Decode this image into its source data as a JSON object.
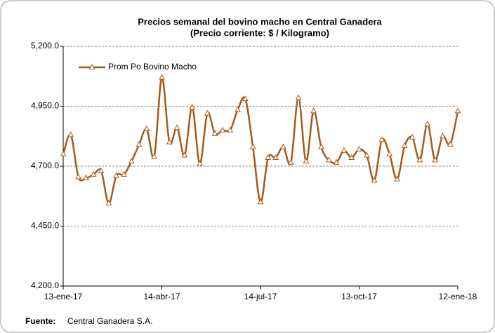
{
  "chart_data": {
    "type": "line",
    "title": "Precios semanal del bovino  macho en Central Ganadera",
    "subtitle": "(Precio corriente: $ / Kilogramo)",
    "categories": [
      "13-ene-17",
      null,
      null,
      null,
      null,
      null,
      null,
      null,
      null,
      null,
      null,
      null,
      null,
      "14-abr-17",
      null,
      null,
      null,
      null,
      null,
      null,
      null,
      null,
      null,
      null,
      null,
      null,
      "14-jul-17",
      null,
      null,
      null,
      null,
      null,
      null,
      null,
      null,
      null,
      null,
      null,
      null,
      "13-oct-17",
      null,
      null,
      null,
      null,
      null,
      null,
      null,
      null,
      null,
      null,
      null,
      null,
      "12-ene-18"
    ],
    "series": [
      {
        "name": "Prom Po Bovino Macho",
        "color": "#a65a1a",
        "values": [
          4750,
          4830,
          4655,
          4650,
          4665,
          4680,
          4545,
          4660,
          4665,
          4720,
          4790,
          4855,
          4740,
          5070,
          4800,
          4860,
          4745,
          4945,
          4710,
          4920,
          4835,
          4850,
          4850,
          4935,
          4980,
          4780,
          4550,
          4735,
          4735,
          4780,
          4715,
          4985,
          4720,
          4930,
          4780,
          4725,
          4715,
          4765,
          4735,
          4770,
          4745,
          4640,
          4810,
          4750,
          4645,
          4785,
          4820,
          4725,
          4875,
          4725,
          4825,
          4790,
          4930
        ]
      }
    ],
    "ylim": [
      4200,
      5200
    ],
    "yticks": [
      {
        "value": 4200,
        "label": "4,200.0"
      },
      {
        "value": 4450,
        "label": "4,450.0"
      },
      {
        "value": 4700,
        "label": "4,700.0"
      },
      {
        "value": 4950,
        "label": "4,950.0"
      },
      {
        "value": 5200,
        "label": "5,200.0"
      }
    ],
    "grid": true,
    "legend": "upper left",
    "source_label": "Fuente:",
    "source": "Central Ganadera S.A."
  }
}
